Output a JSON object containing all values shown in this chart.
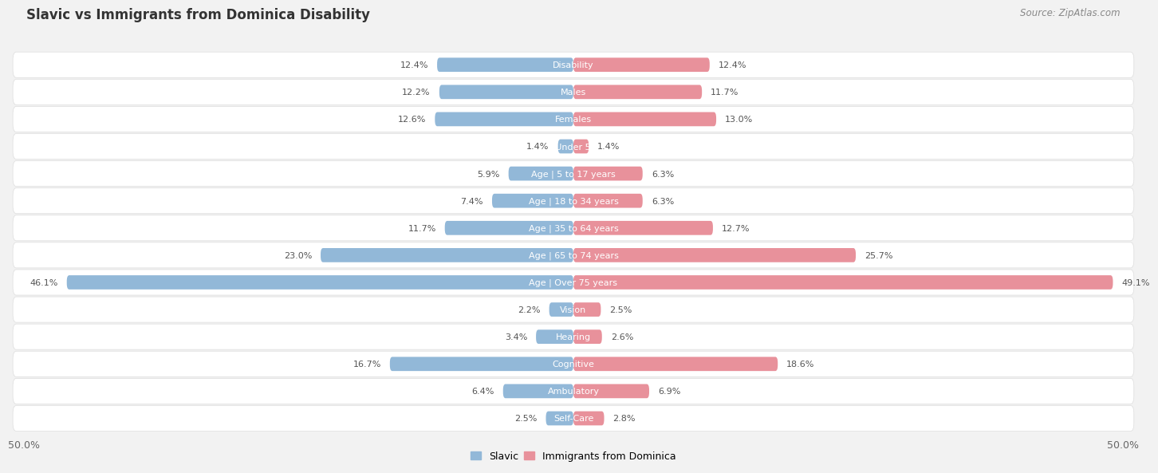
{
  "title": "Slavic vs Immigrants from Dominica Disability",
  "source": "Source: ZipAtlas.com",
  "categories": [
    "Disability",
    "Males",
    "Females",
    "Age | Under 5 years",
    "Age | 5 to 17 years",
    "Age | 18 to 34 years",
    "Age | 35 to 64 years",
    "Age | 65 to 74 years",
    "Age | Over 75 years",
    "Vision",
    "Hearing",
    "Cognitive",
    "Ambulatory",
    "Self-Care"
  ],
  "slavic": [
    12.4,
    12.2,
    12.6,
    1.4,
    5.9,
    7.4,
    11.7,
    23.0,
    46.1,
    2.2,
    3.4,
    16.7,
    6.4,
    2.5
  ],
  "dominica": [
    12.4,
    11.7,
    13.0,
    1.4,
    6.3,
    6.3,
    12.7,
    25.7,
    49.1,
    2.5,
    2.6,
    18.6,
    6.9,
    2.8
  ],
  "slavic_color": "#92b8d8",
  "dominica_color": "#e8919b",
  "axis_limit": 50.0,
  "bg_color": "#f2f2f2",
  "row_bg": "#ffffff",
  "row_border": "#dddddd",
  "legend_slavic": "Slavic",
  "legend_dominica": "Immigrants from Dominica",
  "title_fontsize": 12,
  "label_fontsize": 8,
  "value_fontsize": 8,
  "source_fontsize": 8.5
}
